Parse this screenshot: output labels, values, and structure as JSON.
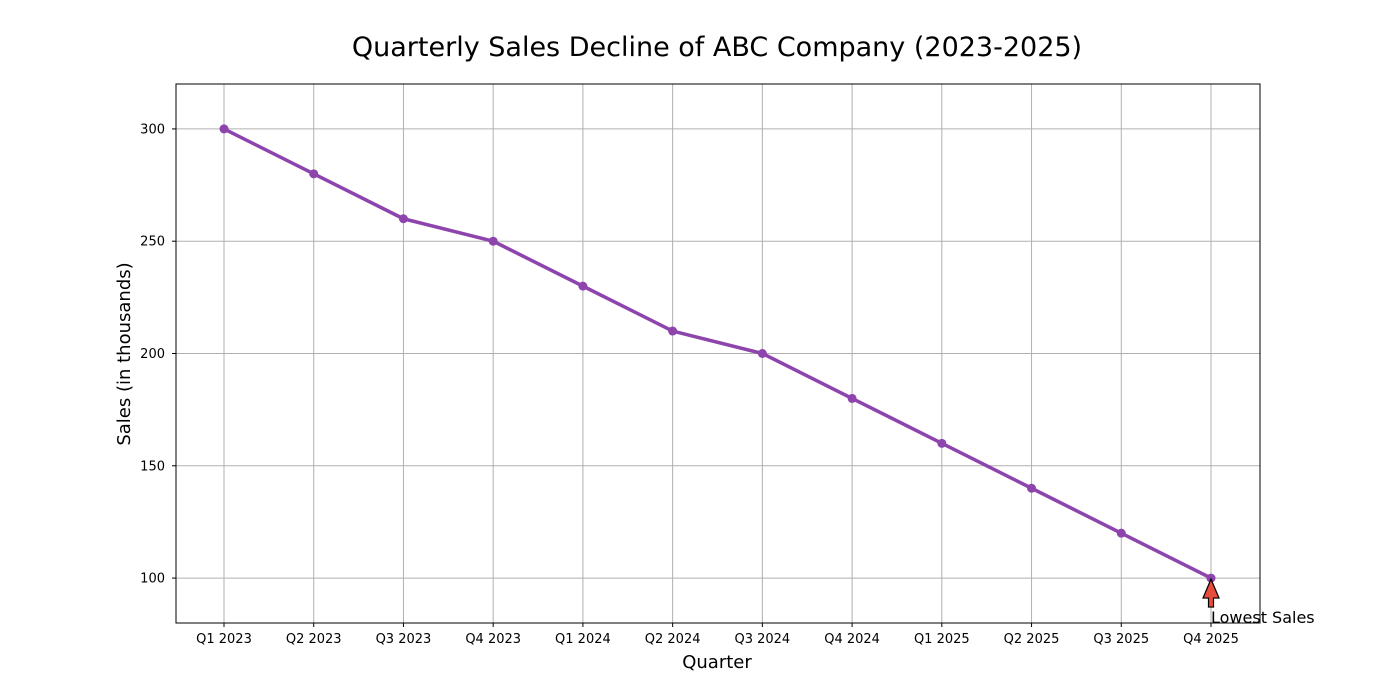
{
  "chart_data": {
    "type": "line",
    "title": "Quarterly Sales Decline of ABC Company (2023-2025)",
    "xlabel": "Quarter",
    "ylabel": "Sales (in thousands)",
    "categories": [
      "Q1 2023",
      "Q2 2023",
      "Q3 2023",
      "Q4 2023",
      "Q1 2024",
      "Q2 2024",
      "Q3 2024",
      "Q4 2024",
      "Q1 2025",
      "Q2 2025",
      "Q3 2025",
      "Q4 2025"
    ],
    "series": [
      {
        "values": [
          300,
          280,
          260,
          250,
          230,
          210,
          200,
          180,
          160,
          140,
          120,
          100
        ],
        "color": "#8e44ad",
        "marker": "circle"
      }
    ],
    "ylim": [
      80,
      320
    ],
    "yticks": [
      100,
      150,
      200,
      250,
      300
    ],
    "grid": true,
    "annotation": {
      "text": "Lowest Sales",
      "category": "Q4 2025",
      "value": 100,
      "arrow_color": "#e74c3c"
    }
  }
}
